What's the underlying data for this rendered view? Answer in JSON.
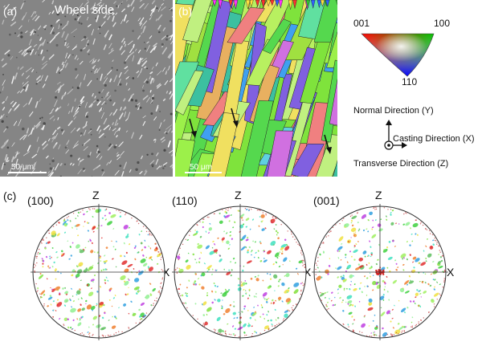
{
  "panel_a": {
    "letter": "(a)",
    "title": "Wheel side",
    "scalebar": "50 μm"
  },
  "panel_b": {
    "letter": "(b)",
    "scalebar": "50 μm"
  },
  "ipf_legend": {
    "corner_001": "001",
    "corner_100": "100",
    "corner_110": "110"
  },
  "coords": {
    "normal": "Normal Direction (Y)",
    "casting": "Casting Direction (X)",
    "transverse": "Transverse Direction (Z)"
  },
  "panel_c": {
    "letter": "(c)",
    "pole_figures": [
      {
        "name": "(100)",
        "z": "Z",
        "x": "X"
      },
      {
        "name": "(110)",
        "z": "Z",
        "x": "X"
      },
      {
        "name": "(001)",
        "z": "Z",
        "x": "X"
      }
    ]
  },
  "colors": {
    "sem_bg": "#8a8a8a",
    "ebsd_green": "#7fe33c"
  }
}
